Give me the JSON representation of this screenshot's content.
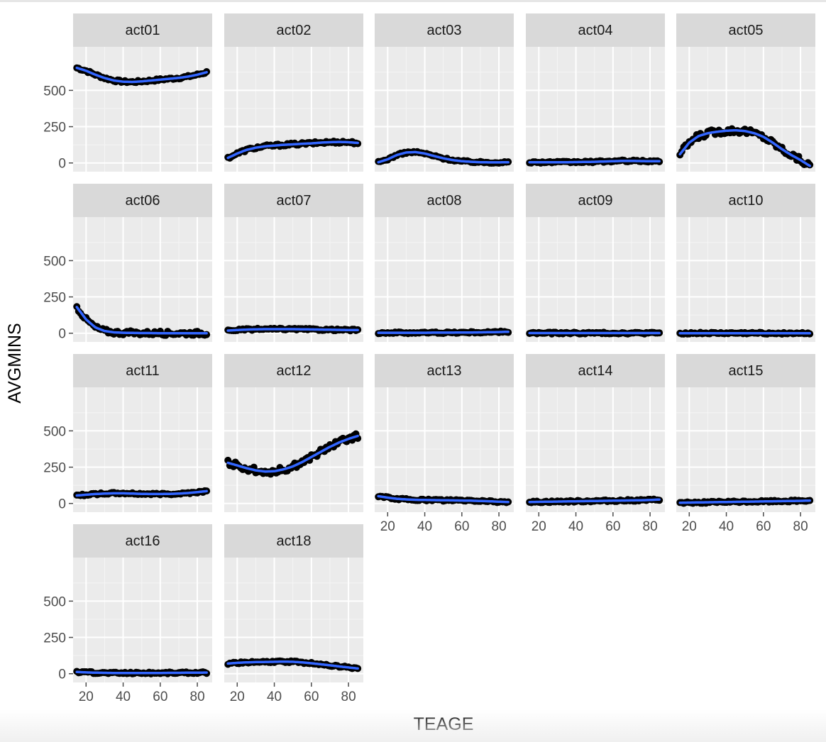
{
  "chart_data": {
    "type": "scatter",
    "layout": "facet_wrap",
    "ncol": 5,
    "xlabel": "TEAGE",
    "ylabel": "AVGMINS",
    "xlim": [
      13,
      88
    ],
    "ylim": [
      -60,
      800
    ],
    "x_ticks": [
      20,
      40,
      60,
      80
    ],
    "y_ticks": [
      0,
      250,
      500
    ],
    "grid": true,
    "smooth": true,
    "colors": {
      "panel_bg": "#ebebeb",
      "strip_bg": "#d9d9d9",
      "grid_major": "#ffffff",
      "grid_minor": "#f5f5f5",
      "point": "#000000",
      "smooth": "#3366ff",
      "tick": "#4d4d4d",
      "axis_title": "#000000"
    },
    "facets": [
      {
        "label": "act01",
        "curve": [
          [
            15,
            655
          ],
          [
            20,
            635
          ],
          [
            25,
            608
          ],
          [
            30,
            585
          ],
          [
            35,
            568
          ],
          [
            40,
            560
          ],
          [
            45,
            558
          ],
          [
            50,
            562
          ],
          [
            55,
            568
          ],
          [
            60,
            574
          ],
          [
            65,
            580
          ],
          [
            70,
            586
          ],
          [
            75,
            595
          ],
          [
            80,
            608
          ],
          [
            85,
            625
          ]
        ]
      },
      {
        "label": "act02",
        "curve": [
          [
            15,
            35
          ],
          [
            20,
            65
          ],
          [
            25,
            90
          ],
          [
            30,
            105
          ],
          [
            35,
            115
          ],
          [
            40,
            120
          ],
          [
            45,
            125
          ],
          [
            50,
            128
          ],
          [
            55,
            132
          ],
          [
            60,
            135
          ],
          [
            65,
            140
          ],
          [
            70,
            143
          ],
          [
            75,
            145
          ],
          [
            80,
            143
          ],
          [
            85,
            138
          ]
        ]
      },
      {
        "label": "act03",
        "curve": [
          [
            15,
            5
          ],
          [
            20,
            25
          ],
          [
            25,
            55
          ],
          [
            30,
            72
          ],
          [
            35,
            75
          ],
          [
            40,
            65
          ],
          [
            45,
            48
          ],
          [
            50,
            32
          ],
          [
            55,
            20
          ],
          [
            60,
            12
          ],
          [
            65,
            8
          ],
          [
            70,
            5
          ],
          [
            75,
            4
          ],
          [
            80,
            4
          ],
          [
            85,
            5
          ]
        ]
      },
      {
        "label": "act04",
        "curve": [
          [
            15,
            5
          ],
          [
            20,
            5
          ],
          [
            25,
            5
          ],
          [
            30,
            5
          ],
          [
            35,
            5
          ],
          [
            40,
            6
          ],
          [
            45,
            7
          ],
          [
            50,
            8
          ],
          [
            55,
            10
          ],
          [
            60,
            12
          ],
          [
            65,
            14
          ],
          [
            70,
            14
          ],
          [
            75,
            13
          ],
          [
            80,
            12
          ],
          [
            85,
            12
          ]
        ]
      },
      {
        "label": "act05",
        "curve": [
          [
            15,
            60
          ],
          [
            20,
            140
          ],
          [
            25,
            185
          ],
          [
            30,
            205
          ],
          [
            35,
            215
          ],
          [
            40,
            222
          ],
          [
            45,
            225
          ],
          [
            50,
            220
          ],
          [
            55,
            205
          ],
          [
            60,
            180
          ],
          [
            65,
            140
          ],
          [
            70,
            95
          ],
          [
            75,
            55
          ],
          [
            80,
            20
          ],
          [
            85,
            -20
          ]
        ]
      },
      {
        "label": "act06",
        "curve": [
          [
            15,
            180
          ],
          [
            20,
            95
          ],
          [
            25,
            40
          ],
          [
            30,
            15
          ],
          [
            35,
            6
          ],
          [
            40,
            3
          ],
          [
            45,
            2
          ],
          [
            50,
            1
          ],
          [
            55,
            1
          ],
          [
            60,
            0
          ],
          [
            65,
            0
          ],
          [
            70,
            0
          ],
          [
            75,
            0
          ],
          [
            80,
            0
          ],
          [
            85,
            0
          ]
        ]
      },
      {
        "label": "act07",
        "curve": [
          [
            15,
            18
          ],
          [
            20,
            22
          ],
          [
            25,
            25
          ],
          [
            30,
            27
          ],
          [
            35,
            28
          ],
          [
            40,
            28
          ],
          [
            45,
            28
          ],
          [
            50,
            28
          ],
          [
            55,
            27
          ],
          [
            60,
            26
          ],
          [
            65,
            25
          ],
          [
            70,
            24
          ],
          [
            75,
            23
          ],
          [
            80,
            22
          ],
          [
            85,
            22
          ]
        ]
      },
      {
        "label": "act08",
        "curve": [
          [
            15,
            3
          ],
          [
            20,
            3
          ],
          [
            25,
            3
          ],
          [
            30,
            3
          ],
          [
            35,
            3
          ],
          [
            40,
            3
          ],
          [
            45,
            4
          ],
          [
            50,
            4
          ],
          [
            55,
            4
          ],
          [
            60,
            5
          ],
          [
            65,
            5
          ],
          [
            70,
            6
          ],
          [
            75,
            7
          ],
          [
            80,
            8
          ],
          [
            85,
            10
          ]
        ]
      },
      {
        "label": "act09",
        "curve": [
          [
            15,
            1
          ],
          [
            20,
            1
          ],
          [
            25,
            1
          ],
          [
            30,
            1
          ],
          [
            35,
            1
          ],
          [
            40,
            1
          ],
          [
            45,
            1
          ],
          [
            50,
            1
          ],
          [
            55,
            1
          ],
          [
            60,
            1
          ],
          [
            65,
            1
          ],
          [
            70,
            1
          ],
          [
            75,
            1
          ],
          [
            80,
            1
          ],
          [
            85,
            1
          ]
        ]
      },
      {
        "label": "act10",
        "curve": [
          [
            15,
            0
          ],
          [
            20,
            0
          ],
          [
            25,
            0
          ],
          [
            30,
            0
          ],
          [
            35,
            0
          ],
          [
            40,
            0
          ],
          [
            45,
            0
          ],
          [
            50,
            0
          ],
          [
            55,
            0
          ],
          [
            60,
            0
          ],
          [
            65,
            0
          ],
          [
            70,
            0
          ],
          [
            75,
            0
          ],
          [
            80,
            0
          ],
          [
            85,
            0
          ]
        ]
      },
      {
        "label": "act11",
        "curve": [
          [
            15,
            55
          ],
          [
            20,
            60
          ],
          [
            25,
            65
          ],
          [
            30,
            68
          ],
          [
            35,
            70
          ],
          [
            40,
            70
          ],
          [
            45,
            68
          ],
          [
            50,
            66
          ],
          [
            55,
            65
          ],
          [
            60,
            65
          ],
          [
            65,
            66
          ],
          [
            70,
            68
          ],
          [
            75,
            72
          ],
          [
            80,
            78
          ],
          [
            85,
            85
          ]
        ]
      },
      {
        "label": "act12",
        "curve": [
          [
            15,
            280
          ],
          [
            20,
            262
          ],
          [
            25,
            243
          ],
          [
            30,
            228
          ],
          [
            35,
            220
          ],
          [
            40,
            222
          ],
          [
            45,
            235
          ],
          [
            50,
            255
          ],
          [
            55,
            285
          ],
          [
            60,
            320
          ],
          [
            65,
            355
          ],
          [
            70,
            390
          ],
          [
            75,
            420
          ],
          [
            80,
            445
          ],
          [
            85,
            465
          ]
        ]
      },
      {
        "label": "act13",
        "curve": [
          [
            15,
            50
          ],
          [
            20,
            40
          ],
          [
            25,
            32
          ],
          [
            30,
            28
          ],
          [
            35,
            25
          ],
          [
            40,
            24
          ],
          [
            45,
            23
          ],
          [
            50,
            22
          ],
          [
            55,
            21
          ],
          [
            60,
            20
          ],
          [
            65,
            19
          ],
          [
            70,
            17
          ],
          [
            75,
            15
          ],
          [
            80,
            12
          ],
          [
            85,
            10
          ]
        ]
      },
      {
        "label": "act14",
        "curve": [
          [
            15,
            10
          ],
          [
            20,
            11
          ],
          [
            25,
            12
          ],
          [
            30,
            13
          ],
          [
            35,
            14
          ],
          [
            40,
            15
          ],
          [
            45,
            16
          ],
          [
            50,
            17
          ],
          [
            55,
            18
          ],
          [
            60,
            19
          ],
          [
            65,
            20
          ],
          [
            70,
            21
          ],
          [
            75,
            22
          ],
          [
            80,
            24
          ],
          [
            85,
            27
          ]
        ]
      },
      {
        "label": "act15",
        "curve": [
          [
            15,
            5
          ],
          [
            20,
            6
          ],
          [
            25,
            7
          ],
          [
            30,
            8
          ],
          [
            35,
            9
          ],
          [
            40,
            10
          ],
          [
            45,
            11
          ],
          [
            50,
            12
          ],
          [
            55,
            13
          ],
          [
            60,
            14
          ],
          [
            65,
            15
          ],
          [
            70,
            16
          ],
          [
            75,
            17
          ],
          [
            80,
            18
          ],
          [
            85,
            20
          ]
        ]
      },
      {
        "label": "act16",
        "curve": [
          [
            15,
            12
          ],
          [
            20,
            9
          ],
          [
            25,
            7
          ],
          [
            30,
            6
          ],
          [
            35,
            5
          ],
          [
            40,
            5
          ],
          [
            45,
            5
          ],
          [
            50,
            5
          ],
          [
            55,
            5
          ],
          [
            60,
            5
          ],
          [
            65,
            6
          ],
          [
            70,
            6
          ],
          [
            75,
            7
          ],
          [
            80,
            7
          ],
          [
            85,
            8
          ]
        ]
      },
      {
        "label": "act18",
        "curve": [
          [
            15,
            70
          ],
          [
            20,
            75
          ],
          [
            25,
            78
          ],
          [
            30,
            80
          ],
          [
            35,
            81
          ],
          [
            40,
            82
          ],
          [
            45,
            83
          ],
          [
            50,
            82
          ],
          [
            55,
            78
          ],
          [
            60,
            72
          ],
          [
            65,
            65
          ],
          [
            70,
            58
          ],
          [
            75,
            50
          ],
          [
            80,
            43
          ],
          [
            85,
            36
          ]
        ]
      }
    ]
  }
}
